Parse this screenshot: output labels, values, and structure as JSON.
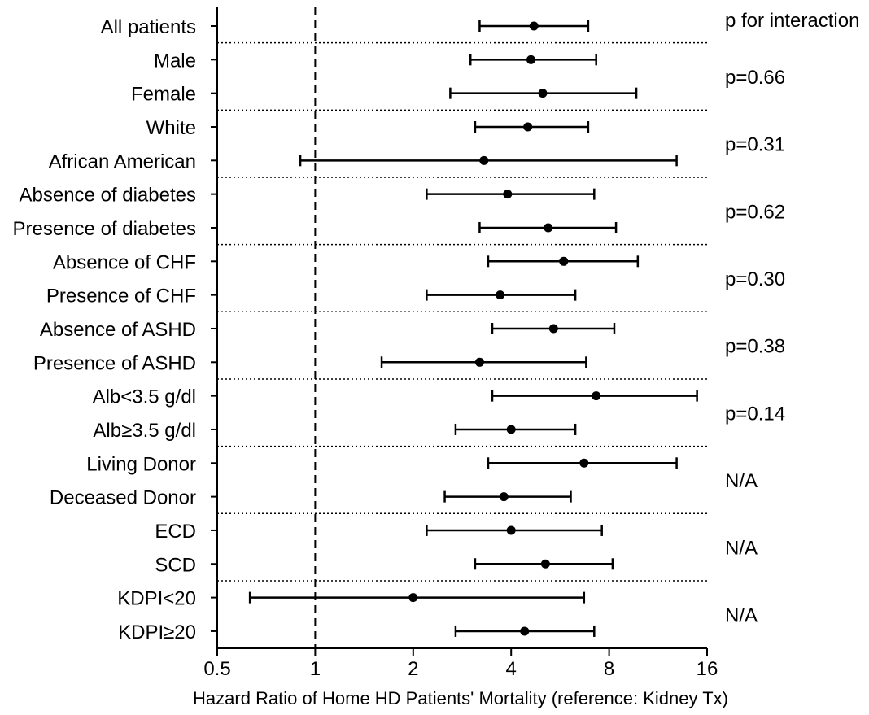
{
  "chart_data": {
    "type": "forest",
    "title": "",
    "xlabel": "Hazard Ratio of Home HD Patients' Mortality (reference: Kidney Tx)",
    "xscale": "log2",
    "xlim": [
      0.5,
      16
    ],
    "xticks": [
      {
        "value": 0.5,
        "label": "0.5"
      },
      {
        "value": 1,
        "label": "1"
      },
      {
        "value": 2,
        "label": "2"
      },
      {
        "value": 4,
        "label": "4"
      },
      {
        "value": 8,
        "label": "8"
      },
      {
        "value": 16,
        "label": "16"
      }
    ],
    "reference_line": 1,
    "interaction_header": "p for interaction",
    "rows": [
      {
        "label": "All patients",
        "hr": 4.7,
        "lo": 3.2,
        "hi": 6.9
      },
      {
        "label": "Male",
        "hr": 4.6,
        "lo": 3.0,
        "hi": 7.3
      },
      {
        "label": "Female",
        "hr": 5.0,
        "lo": 2.6,
        "hi": 9.7
      },
      {
        "label": "White",
        "hr": 4.5,
        "lo": 3.1,
        "hi": 6.9
      },
      {
        "label": "African American",
        "hr": 3.3,
        "lo": 0.9,
        "hi": 12.9
      },
      {
        "label": "Absence of diabetes",
        "hr": 3.9,
        "lo": 2.2,
        "hi": 7.2
      },
      {
        "label": "Presence of diabetes",
        "hr": 5.2,
        "lo": 3.2,
        "hi": 8.4
      },
      {
        "label": "Absence of CHF",
        "hr": 5.8,
        "lo": 3.4,
        "hi": 9.8
      },
      {
        "label": "Presence of CHF",
        "hr": 3.7,
        "lo": 2.2,
        "hi": 6.3
      },
      {
        "label": "Absence of ASHD",
        "hr": 5.4,
        "lo": 3.5,
        "hi": 8.3
      },
      {
        "label": "Presence of ASHD",
        "hr": 3.2,
        "lo": 1.6,
        "hi": 6.8
      },
      {
        "label": "Alb<3.5 g/dl",
        "hr": 7.3,
        "lo": 3.5,
        "hi": 14.9
      },
      {
        "label": "Alb≥3.5 g/dl",
        "hr": 4.0,
        "lo": 2.7,
        "hi": 6.3
      },
      {
        "label": "Living Donor",
        "hr": 6.7,
        "lo": 3.4,
        "hi": 12.9
      },
      {
        "label": "Deceased Donor",
        "hr": 3.8,
        "lo": 2.5,
        "hi": 6.1
      },
      {
        "label": "ECD",
        "hr": 4.0,
        "lo": 2.2,
        "hi": 7.6
      },
      {
        "label": "SCD",
        "hr": 5.1,
        "lo": 3.1,
        "hi": 8.2
      },
      {
        "label": "KDPI<20",
        "hr": 2.0,
        "lo": 0.63,
        "hi": 6.7
      },
      {
        "label": "KDPI≥20",
        "hr": 4.4,
        "lo": 2.7,
        "hi": 7.2
      }
    ],
    "groups": [
      {
        "rows": [
          0
        ],
        "p": ""
      },
      {
        "rows": [
          1,
          2
        ],
        "p": "p=0.66"
      },
      {
        "rows": [
          3,
          4
        ],
        "p": "p=0.31"
      },
      {
        "rows": [
          5,
          6
        ],
        "p": "p=0.62"
      },
      {
        "rows": [
          7,
          8
        ],
        "p": "p=0.30"
      },
      {
        "rows": [
          9,
          10
        ],
        "p": "p=0.38"
      },
      {
        "rows": [
          11,
          12
        ],
        "p": "p=0.14"
      },
      {
        "rows": [
          13,
          14
        ],
        "p": "N/A"
      },
      {
        "rows": [
          15,
          16
        ],
        "p": "N/A"
      },
      {
        "rows": [
          17,
          18
        ],
        "p": "N/A"
      }
    ]
  }
}
